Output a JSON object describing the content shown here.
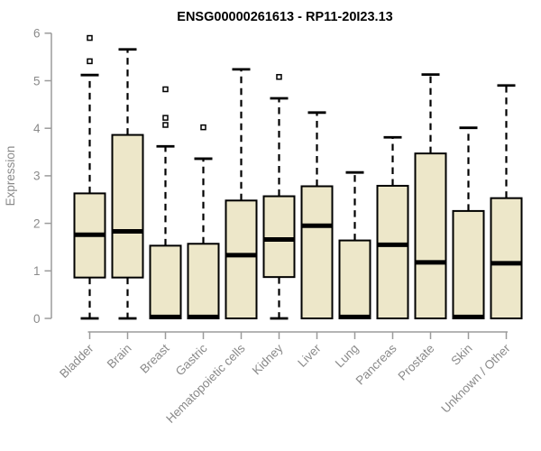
{
  "chart_data": {
    "type": "boxplot",
    "title": "ENSG00000261613 - RP11-20I23.13",
    "ylabel": "Expression",
    "xlabel": "",
    "ylim": [
      0,
      6
    ],
    "yticks": [
      0,
      1,
      2,
      3,
      4,
      5,
      6
    ],
    "grid": false,
    "legend": "none",
    "x_tick_rotation_deg": 45,
    "colors": {
      "box_fill": "#EDE7C9",
      "box_stroke": "#000000",
      "whisker": "#000000",
      "median": "#000000",
      "outlier_fill": "#ffffff",
      "axis_line": "#9b9b9b",
      "label_text": "#8a8a8a",
      "background": "#ffffff"
    },
    "categories": [
      "Bladder",
      "Brain",
      "Breast",
      "Gastric",
      "Hematopoietic cells",
      "Kidney",
      "Liver",
      "Lung",
      "Pancreas",
      "Prostate",
      "Skin",
      "Unknown / Other"
    ],
    "series": [
      {
        "name": "Bladder",
        "whisker_low": 0,
        "q1": 0.86,
        "median": 1.76,
        "q3": 2.63,
        "whisker_high": 5.12,
        "outliers": [
          5.9,
          5.41
        ]
      },
      {
        "name": "Brain",
        "whisker_low": 0,
        "q1": 0.86,
        "median": 1.83,
        "q3": 3.86,
        "whisker_high": 5.66,
        "outliers": []
      },
      {
        "name": "Breast",
        "whisker_low": 0,
        "q1": 0,
        "median": 0.03,
        "q3": 1.53,
        "whisker_high": 3.62,
        "outliers": [
          4.82,
          4.22,
          4.07
        ]
      },
      {
        "name": "Gastric",
        "whisker_low": 0,
        "q1": 0,
        "median": 0.03,
        "q3": 1.57,
        "whisker_high": 3.36,
        "outliers": [
          4.02
        ]
      },
      {
        "name": "Hematopoietic cells",
        "whisker_low": 0,
        "q1": 0,
        "median": 1.33,
        "q3": 2.48,
        "whisker_high": 5.24,
        "outliers": []
      },
      {
        "name": "Kidney",
        "whisker_low": 0,
        "q1": 0.87,
        "median": 1.66,
        "q3": 2.57,
        "whisker_high": 4.63,
        "outliers": [
          5.08
        ]
      },
      {
        "name": "Liver",
        "whisker_low": 0,
        "q1": 0,
        "median": 1.95,
        "q3": 2.78,
        "whisker_high": 4.33,
        "outliers": []
      },
      {
        "name": "Lung",
        "whisker_low": 0,
        "q1": 0,
        "median": 0.03,
        "q3": 1.64,
        "whisker_high": 3.07,
        "outliers": []
      },
      {
        "name": "Pancreas",
        "whisker_low": 0,
        "q1": 0,
        "median": 1.55,
        "q3": 2.79,
        "whisker_high": 3.81,
        "outliers": []
      },
      {
        "name": "Prostate",
        "whisker_low": 0,
        "q1": 0,
        "median": 1.18,
        "q3": 3.47,
        "whisker_high": 5.13,
        "outliers": []
      },
      {
        "name": "Skin",
        "whisker_low": 0,
        "q1": 0,
        "median": 0.03,
        "q3": 2.26,
        "whisker_high": 4.01,
        "outliers": []
      },
      {
        "name": "Unknown / Other",
        "whisker_low": 0,
        "q1": 0,
        "median": 1.16,
        "q3": 2.53,
        "whisker_high": 4.9,
        "outliers": []
      }
    ]
  }
}
